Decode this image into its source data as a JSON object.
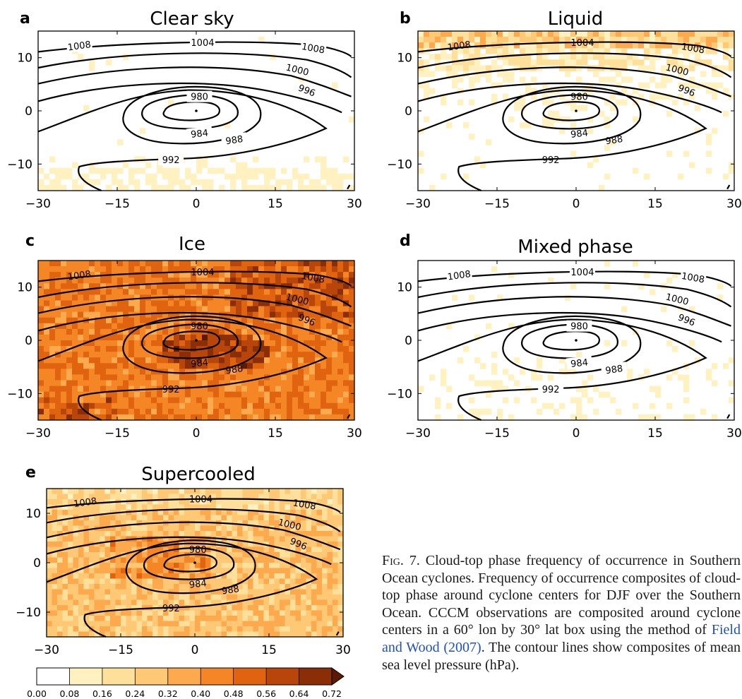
{
  "chart_data": [
    {
      "type": "heatmap",
      "panel_letter": "a",
      "title": "Clear sky",
      "xlim": [
        -30,
        30
      ],
      "ylim": [
        -15,
        15
      ],
      "xticks": [
        "−30",
        "−15",
        "0",
        "15",
        "30"
      ],
      "yticks": [
        "10",
        "0",
        "−10"
      ],
      "field_description_mean_frequency": 0.03,
      "contour_labels": [
        "1008",
        "1004",
        "1008",
        "1000",
        "996",
        "980",
        "984",
        "988",
        "992"
      ]
    },
    {
      "type": "heatmap",
      "panel_letter": "b",
      "title": "Liquid",
      "xlim": [
        -30,
        30
      ],
      "ylim": [
        -15,
        15
      ],
      "xticks": [
        "−30",
        "−15",
        "0",
        "15",
        "30"
      ],
      "yticks": [
        "10",
        "0",
        "−10"
      ],
      "field_description_mean_frequency": 0.07,
      "contour_labels": [
        "1008",
        "1004",
        "1008",
        "1000",
        "996",
        "980",
        "984",
        "988",
        "992"
      ]
    },
    {
      "type": "heatmap",
      "panel_letter": "c",
      "title": "Ice",
      "xlim": [
        -30,
        30
      ],
      "ylim": [
        -15,
        15
      ],
      "xticks": [
        "−30",
        "−15",
        "0",
        "15",
        "30"
      ],
      "yticks": [
        "10",
        "0",
        "−10"
      ],
      "field_description_mean_frequency": 0.5,
      "contour_labels": [
        "1008",
        "1004",
        "1008",
        "1000",
        "996",
        "980",
        "984",
        "988",
        "992"
      ]
    },
    {
      "type": "heatmap",
      "panel_letter": "d",
      "title": "Mixed phase",
      "xlim": [
        -30,
        30
      ],
      "ylim": [
        -15,
        15
      ],
      "xticks": [
        "−30",
        "−15",
        "0",
        "15",
        "30"
      ],
      "yticks": [
        "10",
        "0",
        "−10"
      ],
      "field_description_mean_frequency": 0.01,
      "contour_labels": [
        "1008",
        "1004",
        "1008",
        "1000",
        "996",
        "980",
        "984",
        "988",
        "992"
      ]
    },
    {
      "type": "heatmap",
      "panel_letter": "e",
      "title": "Supercooled",
      "xlim": [
        -30,
        30
      ],
      "ylim": [
        -15,
        15
      ],
      "xticks": [
        "−30",
        "−15",
        "0",
        "15",
        "30"
      ],
      "yticks": [
        "10",
        "0",
        "−10"
      ],
      "field_description_mean_frequency": 0.3,
      "contour_labels": [
        "1008",
        "1004",
        "1008",
        "1000",
        "996",
        "980",
        "984",
        "988",
        "992"
      ]
    }
  ],
  "colorbar": {
    "ticks": [
      "0.00",
      "0.08",
      "0.16",
      "0.24",
      "0.32",
      "0.40",
      "0.48",
      "0.56",
      "0.64",
      "0.72"
    ],
    "colors": [
      "#ffffff",
      "#fff1c0",
      "#ffe09a",
      "#ffc874",
      "#fda94e",
      "#f58625",
      "#e0640f",
      "#b8460a",
      "#8a2e08",
      "#5c1a04"
    ]
  },
  "caption": {
    "label": "Fig. 7.",
    "text": " Cloud-top phase frequency of occurrence in Southern Ocean cyclones. Frequency of occurrence composites of cloud-top phase around cyclone centers for DJF over the Southern Ocean. CCCM observations are composited around cyclone centers in a 60° lon by 30° lat box using the method of ",
    "reference": "Field and Wood (2007)",
    "text_end": ". The contour lines show composites of mean sea level pressure (hPa)."
  }
}
